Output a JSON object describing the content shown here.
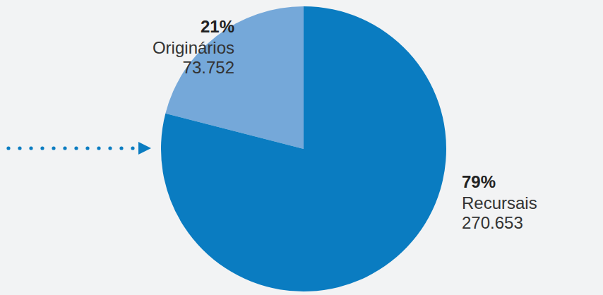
{
  "chart_data": {
    "type": "pie",
    "categories": [
      "Originários",
      "Recursais"
    ],
    "values": [
      21,
      79
    ],
    "value_labels": [
      "21%",
      "79%"
    ],
    "counts": [
      73752,
      270653
    ],
    "count_labels": [
      "73.752",
      "270.653"
    ],
    "colors": [
      "#75a8d9",
      "#0a7cc1"
    ],
    "data_labels": true
  }
}
